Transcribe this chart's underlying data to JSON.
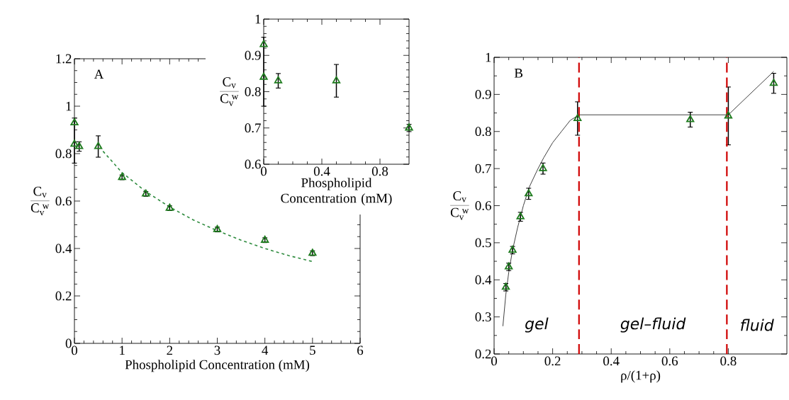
{
  "chart_data": [
    {
      "type": "scatter",
      "xlabel": "Phospholipid Concentration (mM)",
      "ylabel": "\\frac{\\mathrm{C}_{\\mathrm{v}}}{\\mathrm{C}_{\\mathrm{v}}^{\\;\\mathrm{w}}}",
      "annotations": [
        "A"
      ],
      "xlim": [
        0,
        6
      ],
      "ylim": [
        0,
        1.2
      ],
      "xticks": [
        0,
        1,
        2,
        3,
        4,
        5,
        6
      ],
      "yticks": [
        0,
        0.2,
        0.4,
        0.6,
        0.8,
        1,
        1.2
      ],
      "series": [
        {
          "color": "#1e7b1e",
          "marker": "triangle",
          "x": [
            0,
            0,
            0.1,
            0.5,
            1,
            1.5,
            2,
            3,
            4,
            5
          ],
          "values": [
            0.93,
            0.84,
            0.83,
            0.83,
            0.7,
            0.63,
            0.57,
            0.48,
            0.435,
            0.38
          ],
          "errors": [
            null,
            [
              0.76,
              0.95
            ],
            0.02,
            0.045,
            0.01,
            0.01,
            0.01,
            0.01,
            0.01,
            0.01
          ]
        },
        {
          "type": "line",
          "color": "#2e8b3e",
          "line_style": "dashed",
          "x": [
            0.6,
            1,
            1.5,
            2,
            2.5,
            3,
            3.5,
            4,
            4.5,
            5
          ],
          "values": [
            0.81,
            0.72,
            0.64,
            0.575,
            0.52,
            0.475,
            0.435,
            0.4,
            0.37,
            0.345
          ]
        }
      ]
    },
    {
      "type": "scatter",
      "xlabel": "Phospholipid Concentration (mM)",
      "ylabel": "\\frac{\\mathrm{C}_{\\mathrm{v}}}{\\mathrm{C}_{\\mathrm{v}}^{\\;\\mathrm{w}}}",
      "xlim": [
        0,
        1
      ],
      "ylim": [
        0.6,
        1
      ],
      "xticks": [
        0,
        0.4,
        0.8
      ],
      "yticks": [
        0.6,
        0.7,
        0.8,
        0.9,
        1
      ],
      "series": [
        {
          "color": "#1e7b1e",
          "marker": "triangle",
          "x": [
            0,
            0,
            0.1,
            0.5,
            1
          ],
          "values": [
            0.93,
            0.84,
            0.83,
            0.83,
            0.7
          ],
          "errors": [
            null,
            [
              0.76,
              0.95
            ],
            0.02,
            0.045,
            0.01
          ]
        }
      ]
    },
    {
      "type": "scatter",
      "xlabel": "ρ/(1+ρ)",
      "ylabel": "\\frac{\\mathrm{C}_{\\mathrm{v}}}{\\mathrm{C}_{\\mathrm{v}}^{\\;\\mathrm{w}}}",
      "annotations": [
        "B",
        "gel",
        "gel–fluid",
        "fluid"
      ],
      "xlim": [
        0,
        1
      ],
      "ylim": [
        0.2,
        1
      ],
      "xticks": [
        0,
        0.2,
        0.4,
        0.6,
        0.8
      ],
      "yticks": [
        0.2,
        0.3,
        0.4,
        0.5,
        0.6,
        0.7,
        0.8,
        0.9,
        1
      ],
      "ref_lines": [
        {
          "axis": "x",
          "value": 0.29,
          "color": "#d00000",
          "line_style": "dashed"
        },
        {
          "axis": "x",
          "value": 0.795,
          "color": "#d00000",
          "line_style": "dashed"
        }
      ],
      "series": [
        {
          "type": "line",
          "color": "#404040",
          "line_style": "solid",
          "x": [
            0.03,
            0.04,
            0.05,
            0.063,
            0.08,
            0.1,
            0.12,
            0.15,
            0.17,
            0.2,
            0.23,
            0.26,
            0.29,
            0.8,
            0.955
          ],
          "values": [
            0.275,
            0.36,
            0.42,
            0.48,
            0.54,
            0.6,
            0.65,
            0.7,
            0.73,
            0.77,
            0.8,
            0.83,
            0.845,
            0.845,
            0.962
          ]
        },
        {
          "color": "#1e7b1e",
          "marker": "triangle",
          "x": [
            0.04,
            0.05,
            0.063,
            0.09,
            0.118,
            0.167,
            0.285,
            0.67,
            0.8,
            0.955
          ],
          "values": [
            0.38,
            0.435,
            0.48,
            0.57,
            0.632,
            0.7,
            0.835,
            0.832,
            0.842,
            0.93
          ],
          "errors": [
            0.01,
            0.01,
            0.01,
            0.012,
            0.015,
            0.015,
            0.045,
            0.02,
            0.078,
            0.027
          ]
        }
      ]
    }
  ]
}
